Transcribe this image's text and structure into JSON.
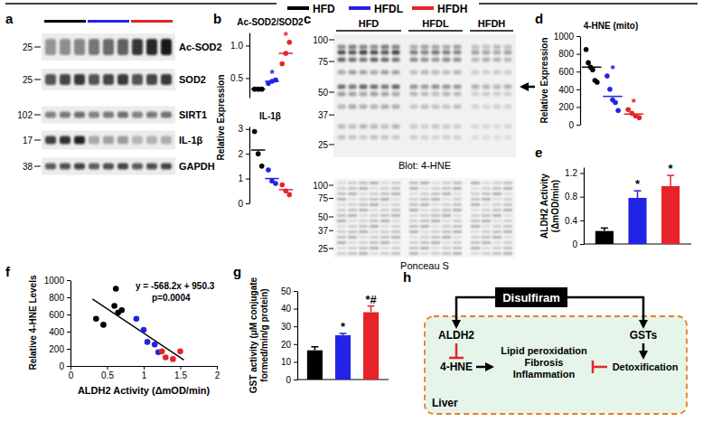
{
  "panel_labels": [
    "a",
    "b",
    "c",
    "d",
    "e",
    "f",
    "g",
    "h"
  ],
  "legend": [
    {
      "name": "HFD",
      "color": "#000000"
    },
    {
      "name": "HFDL",
      "color": "#2323e6"
    },
    {
      "name": "HFDH",
      "color": "#e6232b"
    }
  ],
  "blot_a": {
    "groups": [
      {
        "color": "#000000",
        "lanes": 3
      },
      {
        "color": "#2323e6",
        "lanes": 3
      },
      {
        "color": "#e6232b",
        "lanes": 3
      }
    ],
    "rows": [
      {
        "name": "Ac-SOD2",
        "mw": 25
      },
      {
        "name": "SOD2",
        "mw": 25
      },
      {
        "name": "SIRT1",
        "mw": 102
      },
      {
        "name": "IL-1β",
        "mw": 17
      },
      {
        "name": "GAPDH",
        "mw": 38
      }
    ]
  },
  "blot_c": {
    "groups": [
      {
        "name": "HFD",
        "lanes": 6
      },
      {
        "name": "HFDL",
        "lanes": 5
      },
      {
        "name": "HFDH",
        "lanes": 4
      }
    ],
    "mw": [
      100,
      75,
      50,
      37,
      25
    ],
    "top_caption": "Blot: 4-HNE",
    "bottom_caption": "Ponceau S"
  },
  "chart_data": [
    {
      "type": "dot",
      "title": "Ac-SOD2/SOD2",
      "ylabel": "Relative Expression",
      "ylim": [
        0.2,
        1.2
      ],
      "yticks": [
        0.5,
        {
          "value": 1,
          "label": "1.0"
        }
      ],
      "series": [
        {
          "color": "#000000",
          "values": [
            0.33,
            0.33,
            0.33
          ],
          "mean": 0.33
        },
        {
          "color": "#2323e6",
          "values": [
            0.42,
            0.45,
            0.47
          ],
          "mean": 0.45
        },
        {
          "color": "#e6232b",
          "values": [
            0.72,
            0.88,
            1.05
          ],
          "mean": 0.88
        }
      ],
      "annotations": [
        {
          "index": 1,
          "text": "*"
        },
        {
          "index": 2,
          "text": "*"
        }
      ]
    },
    {
      "type": "dot",
      "title": "IL-1β",
      "ylim": [
        0,
        3.1
      ],
      "yticks": [
        0,
        1,
        2,
        3
      ],
      "series": [
        {
          "color": "#000000",
          "values": [
            2.9,
            2.0,
            1.5
          ],
          "mean": 2.15
        },
        {
          "color": "#2323e6",
          "values": [
            1.35,
            0.9,
            0.8
          ],
          "mean": 1.0
        },
        {
          "color": "#e6232b",
          "values": [
            0.75,
            0.5,
            0.35
          ],
          "mean": 0.55
        }
      ]
    },
    {
      "type": "dot",
      "title": "4-HNE (mito)",
      "ylabel": "Relative Expression",
      "ylim": [
        0,
        1000
      ],
      "yticks": [
        0,
        200,
        400,
        600,
        800,
        1000
      ],
      "series": [
        {
          "color": "#000000",
          "values": [
            850,
            700,
            650,
            620,
            500,
            480
          ],
          "mean": 650
        },
        {
          "color": "#2323e6",
          "values": [
            550,
            400,
            280,
            250,
            160
          ],
          "mean": 320
        },
        {
          "color": "#e6232b",
          "values": [
            170,
            130,
            100,
            80
          ],
          "mean": 120
        }
      ],
      "annotations": [
        {
          "index": 1,
          "text": "*"
        },
        {
          "index": 2,
          "text": "*"
        }
      ]
    },
    {
      "type": "bar",
      "ylabel": [
        "ALDH2 Activity",
        "(ΔmOD/min)"
      ],
      "ylim": [
        0,
        1.3
      ],
      "yticks": [
        0,
        0.4,
        0.8,
        1.2
      ],
      "values": [
        0.22,
        0.78,
        0.98
      ],
      "errors": [
        0.05,
        0.12,
        0.18
      ],
      "colors": [
        "#000000",
        "#2323e6",
        "#e6232b"
      ],
      "annotations": [
        {
          "index": 1,
          "text": "*"
        },
        {
          "index": 2,
          "text": "*"
        }
      ]
    },
    {
      "type": "scatter",
      "xlabel": "ALDH2 Activity (ΔmOD/min)",
      "ylabel": "Relative 4-HNE Levels",
      "xlim": [
        0,
        2
      ],
      "xticks": [
        0,
        0.5,
        1,
        1.5,
        2
      ],
      "ylim": [
        0,
        1000
      ],
      "yticks": [
        0,
        200,
        400,
        600,
        800,
        1000
      ],
      "series": [
        {
          "color": "#000000",
          "x": [
            0.35,
            0.45,
            0.6,
            0.62,
            0.65,
            0.7
          ],
          "values": [
            550,
            480,
            700,
            900,
            620,
            650
          ]
        },
        {
          "color": "#2323e6",
          "x": [
            0.9,
            1.0,
            1.05,
            1.15,
            1.2
          ],
          "values": [
            550,
            420,
            280,
            250,
            160
          ]
        },
        {
          "color": "#e6232b",
          "x": [
            1.25,
            1.3,
            1.4,
            1.5
          ],
          "values": [
            170,
            100,
            80,
            170
          ]
        }
      ],
      "fit": {
        "slope": -568.2,
        "intercept": 950.3,
        "x_range": [
          0.3,
          1.55
        ]
      },
      "annotations": [
        {
          "text": "y = -568.2x + 950.3"
        },
        {
          "text": "p=0.0004"
        }
      ]
    },
    {
      "type": "bar",
      "ylabel": [
        "GST activity (μM conjugate",
        "formed/min/g protein)"
      ],
      "ylim": [
        0,
        50
      ],
      "yticks": [
        0,
        10,
        20,
        30,
        40,
        50
      ],
      "values": [
        16.5,
        25,
        38
      ],
      "errors": [
        2,
        1,
        3.5
      ],
      "colors": [
        "#000000",
        "#2323e6",
        "#e6232b"
      ],
      "annotations": [
        {
          "index": 1,
          "text": "*"
        },
        {
          "index": 2,
          "text": "*#"
        }
      ]
    }
  ],
  "diagram": {
    "drug": "Disulfiram",
    "enzymes": [
      "ALDH2",
      "GSTs"
    ],
    "aldehyde": "4-HNE",
    "effects": [
      "Lipid peroxidation",
      "Fibrosis",
      "Inflammation"
    ],
    "outcome": "Detoxification",
    "organ": "Liver"
  }
}
